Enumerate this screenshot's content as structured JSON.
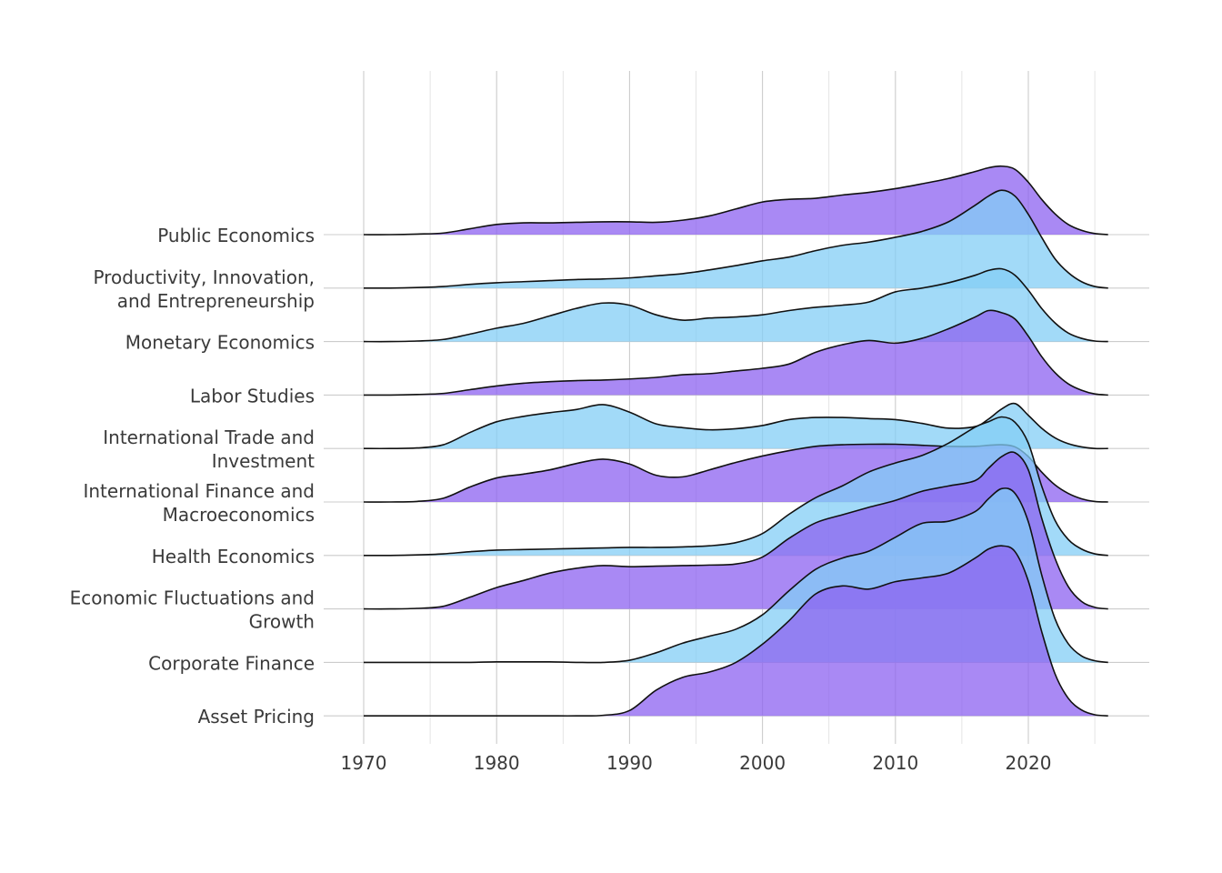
{
  "chart_data": {
    "type": "ridgeline",
    "title": "",
    "xlabel": "",
    "ylabel": "",
    "xlim": [
      1967,
      2029
    ],
    "x_ticks": [
      1970,
      1980,
      1990,
      2000,
      2010,
      2020
    ],
    "x_minor_ticks": [
      1975,
      1985,
      1995,
      2005,
      2015,
      2025
    ],
    "grid": true,
    "legend": "none",
    "colors": {
      "purple": "#8c62f0",
      "blue": "#83cef5"
    },
    "x": [
      1970,
      1972,
      1974,
      1976,
      1978,
      1980,
      1982,
      1984,
      1986,
      1988,
      1990,
      1992,
      1994,
      1996,
      1998,
      2000,
      2002,
      2004,
      2006,
      2008,
      2010,
      2012,
      2014,
      2016,
      2017,
      2018,
      2019,
      2020,
      2021,
      2022,
      2023,
      2024,
      2025,
      2026
    ],
    "categories": [
      {
        "label": [
          "Public Economics"
        ],
        "color": "purple",
        "density": [
          0.0,
          0.0,
          0.01,
          0.03,
          0.11,
          0.19,
          0.22,
          0.22,
          0.23,
          0.24,
          0.24,
          0.23,
          0.27,
          0.35,
          0.48,
          0.61,
          0.66,
          0.68,
          0.74,
          0.79,
          0.86,
          0.95,
          1.05,
          1.18,
          1.25,
          1.28,
          1.22,
          0.98,
          0.66,
          0.39,
          0.19,
          0.08,
          0.02,
          0.0
        ]
      },
      {
        "label": [
          "Productivity, Innovation,",
          "and Entrepreneurship"
        ],
        "color": "blue",
        "density": [
          0.0,
          0.0,
          0.01,
          0.03,
          0.07,
          0.1,
          0.12,
          0.14,
          0.16,
          0.17,
          0.19,
          0.23,
          0.27,
          0.34,
          0.42,
          0.51,
          0.58,
          0.7,
          0.8,
          0.86,
          0.95,
          1.06,
          1.24,
          1.55,
          1.72,
          1.83,
          1.72,
          1.38,
          0.95,
          0.55,
          0.29,
          0.12,
          0.03,
          0.0
        ]
      },
      {
        "label": [
          "Monetary Economics"
        ],
        "color": "blue",
        "density": [
          0.0,
          0.0,
          0.01,
          0.04,
          0.14,
          0.25,
          0.34,
          0.48,
          0.62,
          0.72,
          0.68,
          0.5,
          0.4,
          0.44,
          0.46,
          0.5,
          0.58,
          0.64,
          0.68,
          0.74,
          0.93,
          1.0,
          1.1,
          1.24,
          1.33,
          1.36,
          1.24,
          0.96,
          0.62,
          0.35,
          0.16,
          0.06,
          0.01,
          0.0
        ]
      },
      {
        "label": [
          "Labor Studies"
        ],
        "color": "purple",
        "density": [
          0.0,
          0.0,
          0.01,
          0.03,
          0.1,
          0.17,
          0.22,
          0.25,
          0.27,
          0.28,
          0.3,
          0.33,
          0.38,
          0.4,
          0.45,
          0.5,
          0.58,
          0.8,
          0.94,
          1.02,
          0.97,
          1.06,
          1.24,
          1.46,
          1.58,
          1.54,
          1.42,
          1.1,
          0.72,
          0.42,
          0.21,
          0.09,
          0.02,
          0.0
        ]
      },
      {
        "label": [
          "International Trade and",
          "Investment"
        ],
        "color": "blue",
        "density": [
          0.0,
          0.0,
          0.01,
          0.07,
          0.3,
          0.5,
          0.6,
          0.67,
          0.73,
          0.82,
          0.68,
          0.46,
          0.39,
          0.35,
          0.37,
          0.43,
          0.54,
          0.58,
          0.58,
          0.56,
          0.54,
          0.47,
          0.38,
          0.41,
          0.55,
          0.74,
          0.84,
          0.62,
          0.38,
          0.2,
          0.09,
          0.03,
          0.0,
          0.0
        ]
      },
      {
        "label": [
          "International Finance and",
          "Macroeconomics"
        ],
        "color": "purple",
        "density": [
          0.0,
          0.0,
          0.01,
          0.07,
          0.28,
          0.45,
          0.52,
          0.6,
          0.72,
          0.8,
          0.71,
          0.5,
          0.47,
          0.6,
          0.74,
          0.86,
          0.96,
          1.04,
          1.07,
          1.08,
          1.08,
          1.06,
          1.04,
          1.04,
          1.06,
          1.07,
          1.03,
          0.85,
          0.56,
          0.32,
          0.16,
          0.06,
          0.01,
          0.0
        ]
      },
      {
        "label": [
          "Health Economics"
        ],
        "color": "blue",
        "density": [
          0.0,
          0.0,
          0.01,
          0.03,
          0.07,
          0.1,
          0.11,
          0.12,
          0.13,
          0.14,
          0.15,
          0.15,
          0.16,
          0.18,
          0.24,
          0.41,
          0.77,
          1.08,
          1.3,
          1.56,
          1.73,
          1.87,
          2.1,
          2.4,
          2.5,
          2.59,
          2.49,
          2.1,
          1.3,
          0.66,
          0.3,
          0.12,
          0.03,
          0.0
        ]
      },
      {
        "label": [
          "Economic Fluctuations and",
          "Growth"
        ],
        "color": "purple",
        "density": [
          0.0,
          0.0,
          0.01,
          0.05,
          0.22,
          0.4,
          0.53,
          0.67,
          0.76,
          0.81,
          0.79,
          0.8,
          0.81,
          0.82,
          0.84,
          0.97,
          1.32,
          1.61,
          1.76,
          1.9,
          2.03,
          2.2,
          2.3,
          2.4,
          2.63,
          2.85,
          2.92,
          2.6,
          1.7,
          0.95,
          0.42,
          0.14,
          0.03,
          0.0
        ]
      },
      {
        "label": [
          "Corporate Finance"
        ],
        "color": "blue",
        "density": [
          0.0,
          0.0,
          0.0,
          0.0,
          0.0,
          0.01,
          0.01,
          0.01,
          0.0,
          0.0,
          0.04,
          0.18,
          0.36,
          0.49,
          0.62,
          0.89,
          1.34,
          1.74,
          1.95,
          2.08,
          2.34,
          2.6,
          2.64,
          2.82,
          3.06,
          3.25,
          3.16,
          2.63,
          1.64,
          0.82,
          0.35,
          0.12,
          0.03,
          0.0
        ]
      },
      {
        "label": [
          "Asset Pricing"
        ],
        "color": "purple",
        "density": [
          0.0,
          0.0,
          0.0,
          0.0,
          0.0,
          0.0,
          0.0,
          0.0,
          0.0,
          0.01,
          0.1,
          0.48,
          0.72,
          0.82,
          1.0,
          1.34,
          1.78,
          2.28,
          2.43,
          2.37,
          2.51,
          2.58,
          2.67,
          2.95,
          3.12,
          3.18,
          3.07,
          2.52,
          1.58,
          0.79,
          0.33,
          0.11,
          0.02,
          0.0
        ]
      }
    ]
  }
}
